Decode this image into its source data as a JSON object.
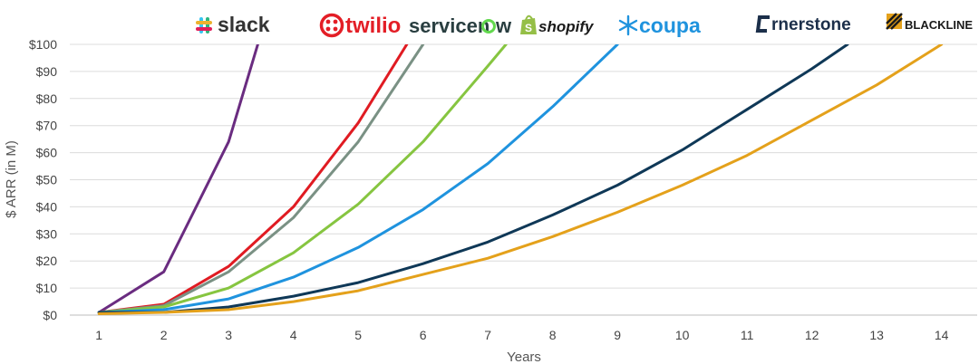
{
  "chart_data": {
    "type": "line",
    "title": "",
    "xlabel": "Years",
    "ylabel": "$ ARR (in M)",
    "x": [
      1,
      2,
      3,
      4,
      5,
      6,
      7,
      8,
      9,
      10,
      11,
      12,
      13,
      14
    ],
    "x_tick_labels": [
      "1",
      "2",
      "3",
      "4",
      "5",
      "6",
      "7",
      "8",
      "9",
      "10",
      "11",
      "12",
      "13",
      "14"
    ],
    "xlim": [
      0.55,
      14.55
    ],
    "ylim": [
      0,
      100
    ],
    "y_tick_labels": [
      "$0",
      "$10",
      "$20",
      "$30",
      "$40",
      "$50",
      "$60",
      "$70",
      "$80",
      "$90",
      "$100"
    ],
    "grid": true,
    "legend": "logos above plot",
    "series": [
      {
        "name": "slack",
        "color": "#6a2c80",
        "x": [
          1,
          2,
          3,
          3.45
        ],
        "values": [
          1,
          16,
          64,
          100
        ]
      },
      {
        "name": "twilio",
        "color": "#e01b22",
        "x": [
          1,
          2,
          3,
          4,
          5,
          5.75
        ],
        "values": [
          1,
          4,
          18,
          40,
          71,
          100
        ]
      },
      {
        "name": "servicenow",
        "color": "#7a9184",
        "x": [
          1,
          2,
          3,
          4,
          5,
          6
        ],
        "values": [
          1,
          3.5,
          16,
          36,
          64,
          100
        ]
      },
      {
        "name": "shopify",
        "color": "#86c540",
        "x": [
          1,
          2,
          3,
          4,
          5,
          6,
          7,
          7.28
        ],
        "values": [
          1,
          3,
          10,
          23,
          41,
          64,
          92,
          100
        ]
      },
      {
        "name": "coupa",
        "color": "#1f93de",
        "x": [
          1,
          2,
          3,
          4,
          5,
          6,
          7,
          8,
          9
        ],
        "values": [
          1,
          2,
          6,
          14,
          25,
          39,
          56,
          77,
          100
        ]
      },
      {
        "name": "cornerstone",
        "color": "#0f3857",
        "x": [
          1,
          2,
          3,
          4,
          5,
          6,
          7,
          8,
          9,
          10,
          11,
          12,
          12.55
        ],
        "values": [
          1,
          1,
          3,
          7,
          12,
          19,
          27,
          37,
          48,
          61,
          76,
          91,
          100
        ]
      },
      {
        "name": "BLACKLINE",
        "color": "#e4a11b",
        "x": [
          1,
          2,
          3,
          4,
          5,
          6,
          7,
          8,
          9,
          10,
          11,
          12,
          13,
          14
        ],
        "values": [
          0.5,
          1,
          2,
          5,
          9,
          15,
          21,
          29,
          38,
          48,
          59,
          72,
          85,
          100
        ]
      }
    ]
  },
  "logos": {
    "slack": "slack",
    "twilio": "twilio",
    "servicenow_a": "servicen",
    "servicenow_b": "w",
    "shopify": "shopify",
    "coupa": "coupa",
    "cornerstone": "rnerstone",
    "blackline": "BLACKLINE"
  }
}
